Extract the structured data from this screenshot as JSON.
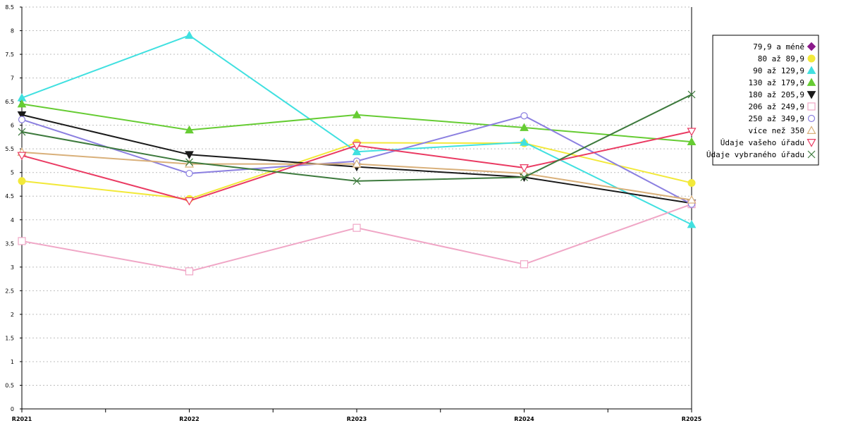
{
  "chart_data": {
    "type": "line",
    "categories": [
      "R2021",
      "R2022",
      "R2023",
      "R2024",
      "R2025"
    ],
    "ylim": [
      0,
      8.5
    ],
    "yticks": [
      "0",
      "0.5",
      "1",
      "1.5",
      "2",
      "2.5",
      "3",
      "3.5",
      "4",
      "4.5",
      "5",
      "5.5",
      "6",
      "6.5",
      "7",
      "7.5",
      "8",
      "8.5"
    ],
    "grid": true,
    "legend_position": "right",
    "series": [
      {
        "name": "79,9 a méně",
        "color": "#8b1a8b",
        "marker": "diamond",
        "values": [
          null,
          null,
          null,
          null,
          null
        ]
      },
      {
        "name": "80 až 89,9",
        "color": "#f2e93a",
        "marker": "circle-filled",
        "values": [
          4.82,
          4.44,
          5.63,
          5.62,
          4.78
        ]
      },
      {
        "name": "90 až 129,9",
        "color": "#40e0e0",
        "marker": "triangle-up-filled",
        "values": [
          6.58,
          7.9,
          5.44,
          5.64,
          3.9
        ]
      },
      {
        "name": "130 až 179,9",
        "color": "#66cc33",
        "marker": "triangle-up-filled",
        "values": [
          6.45,
          5.9,
          6.22,
          5.95,
          5.65
        ]
      },
      {
        "name": "180 až 205,9",
        "color": "#1a1a1a",
        "marker": "triangle-down-filled",
        "values": [
          6.22,
          5.38,
          5.12,
          4.9,
          4.35
        ]
      },
      {
        "name": "206 až 249,9",
        "color": "#f0a6c6",
        "marker": "square-open",
        "values": [
          3.55,
          2.91,
          3.83,
          3.06,
          4.33
        ]
      },
      {
        "name": "250 až 349,9",
        "color": "#8b7fe0",
        "marker": "circle-open",
        "values": [
          6.12,
          4.98,
          5.24,
          6.2,
          4.33
        ]
      },
      {
        "name": "více než 350",
        "color": "#d9b07a",
        "marker": "triangle-up-open",
        "values": [
          5.43,
          5.18,
          5.18,
          4.98,
          4.42
        ]
      },
      {
        "name": "Údaje vašeho úřadu",
        "color": "#ea3a62",
        "marker": "triangle-down-open",
        "values": [
          5.36,
          4.4,
          5.57,
          5.1,
          5.87
        ]
      },
      {
        "name": "Údaje vybraného úřadu",
        "color": "#3d7a3d",
        "marker": "cross",
        "values": [
          5.86,
          5.22,
          4.82,
          4.9,
          6.65
        ]
      }
    ]
  }
}
